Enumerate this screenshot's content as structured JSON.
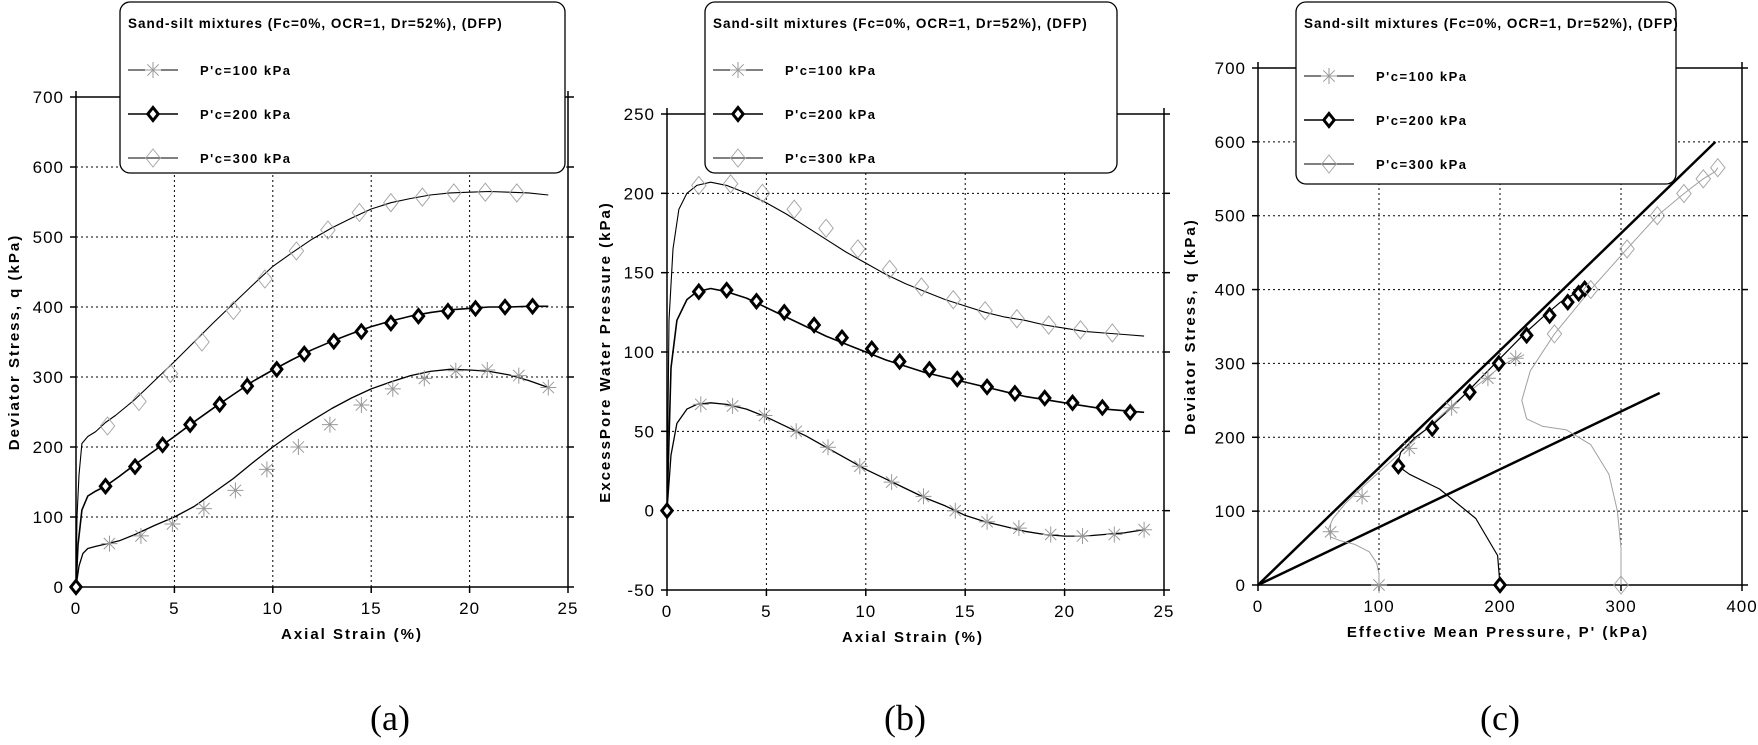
{
  "legend_title": "Sand-silt mixtures (Fc=0%, OCR=1, Dr=52%), (DFP)",
  "legend_entries": [
    "P'c=100 kPa",
    "P'c=200 kPa",
    "P'c=300 kPa"
  ],
  "chart_data": [
    {
      "id": "a",
      "type": "line",
      "caption": "(a)",
      "xlabel": "Axial Strain (%)",
      "ylabel": "Deviator Stress, q (kPa)",
      "xlim": [
        0,
        25
      ],
      "ylim": [
        0,
        700
      ],
      "xticks": [
        0,
        5,
        10,
        15,
        20,
        25
      ],
      "yticks": [
        0,
        100,
        200,
        300,
        400,
        500,
        600,
        700
      ],
      "grid": true,
      "legend_position": "top-center",
      "series": [
        {
          "name": "P'c=100 kPa",
          "marker": "star",
          "x": [
            0,
            0.15,
            0.35,
            0.6,
            1.0,
            1.6,
            2.2,
            3.0,
            4.0,
            5.0,
            6.0,
            7.0,
            8.0,
            9.0,
            10.0,
            11.0,
            12.0,
            13.0,
            14.0,
            15.0,
            16.0,
            17.0,
            18.0,
            19.0,
            20.0,
            21.0,
            22.0,
            23.0,
            24.0
          ],
          "y": [
            0,
            30,
            48,
            55,
            58,
            62,
            66,
            75,
            88,
            100,
            115,
            135,
            155,
            178,
            200,
            220,
            238,
            255,
            270,
            283,
            293,
            302,
            308,
            311,
            310,
            308,
            303,
            295,
            285
          ]
        },
        {
          "name": "P'c=200 kPa",
          "marker": "diamond-bold",
          "x": [
            0,
            0.1,
            0.3,
            0.6,
            1.0,
            1.5,
            2.2,
            3.0,
            4.0,
            5.0,
            6.0,
            7.0,
            8.0,
            9.0,
            10.0,
            11.0,
            12.0,
            13.0,
            14.0,
            15.0,
            16.0,
            17.0,
            18.0,
            19.0,
            20.0,
            21.0,
            22.0,
            23.0,
            24.0
          ],
          "y": [
            0,
            60,
            110,
            130,
            137,
            144,
            158,
            175,
            195,
            215,
            236,
            256,
            275,
            294,
            310,
            325,
            339,
            351,
            362,
            372,
            380,
            387,
            392,
            396,
            398,
            400,
            400,
            401,
            401
          ]
        },
        {
          "name": "P'c=300 kPa",
          "marker": "diamond-open",
          "x": [
            0,
            0.05,
            0.15,
            0.3,
            0.6,
            1.0,
            1.5,
            2.0,
            3.0,
            4.0,
            5.0,
            6.0,
            7.0,
            8.0,
            9.0,
            10.0,
            11.0,
            12.0,
            13.0,
            14.0,
            15.0,
            16.0,
            17.0,
            18.0,
            19.0,
            20.0,
            21.0,
            22.0,
            23.0,
            24.0
          ],
          "y": [
            0,
            100,
            160,
            205,
            215,
            222,
            235,
            245,
            268,
            295,
            322,
            350,
            378,
            405,
            432,
            458,
            478,
            497,
            513,
            527,
            540,
            549,
            555,
            560,
            563,
            564,
            565,
            564,
            563,
            560
          ]
        }
      ],
      "marker_points": [
        {
          "series": 0,
          "x": [
            1.7,
            3.3,
            4.9,
            6.5,
            8.1,
            9.7,
            11.3,
            12.9,
            14.5,
            16.1,
            17.7,
            19.3,
            20.9,
            22.5,
            24.0
          ],
          "y": [
            62,
            73,
            90,
            112,
            138,
            168,
            200,
            232,
            260,
            283,
            298,
            309,
            310,
            302,
            285
          ]
        },
        {
          "series": 1,
          "x": [
            0,
            1.5,
            3.0,
            4.4,
            5.8,
            7.3,
            8.7,
            10.2,
            11.6,
            13.1,
            14.5,
            16.0,
            17.4,
            18.9,
            20.3,
            21.8,
            23.2
          ],
          "y": [
            0,
            144,
            172,
            203,
            232,
            261,
            287,
            311,
            333,
            351,
            365,
            377,
            387,
            394,
            398,
            400,
            401
          ]
        },
        {
          "series": 2,
          "x": [
            1.6,
            3.2,
            4.8,
            6.4,
            8.0,
            9.6,
            11.2,
            12.8,
            14.4,
            16.0,
            17.6,
            19.2,
            20.8,
            22.4
          ],
          "y": [
            230,
            265,
            305,
            350,
            395,
            440,
            480,
            510,
            535,
            549,
            557,
            563,
            564,
            563
          ]
        }
      ]
    },
    {
      "id": "b",
      "type": "line",
      "caption": "(b)",
      "xlabel": "Axial Strain (%)",
      "ylabel": "ExcessPore Water Pressure (kPa)",
      "xlim": [
        0,
        25
      ],
      "ylim": [
        -50,
        250
      ],
      "xticks": [
        0,
        5,
        10,
        15,
        20,
        25
      ],
      "yticks": [
        -50,
        0,
        50,
        100,
        150,
        200,
        250
      ],
      "grid": true,
      "legend_position": "top-center",
      "series": [
        {
          "name": "P'c=100 kPa",
          "marker": "star",
          "x": [
            0,
            0.2,
            0.5,
            1.0,
            1.5,
            2.2,
            3.0,
            4.0,
            5.0,
            6.0,
            7.0,
            8.0,
            9.0,
            10.0,
            11.0,
            12.0,
            13.0,
            14.0,
            15.0,
            16.0,
            17.0,
            18.0,
            19.0,
            20.0,
            21.0,
            22.0,
            23.0,
            24.0
          ],
          "y": [
            0,
            35,
            55,
            64,
            67,
            68,
            67,
            64,
            59,
            53,
            47,
            40,
            33,
            26,
            20,
            14,
            8,
            3,
            -3,
            -7,
            -10,
            -13,
            -15,
            -16,
            -16,
            -15,
            -14,
            -12
          ]
        },
        {
          "name": "P'c=200 kPa",
          "marker": "diamond-bold",
          "x": [
            0,
            0.2,
            0.5,
            1.0,
            1.5,
            2.2,
            3.0,
            4.0,
            5.0,
            6.0,
            7.0,
            8.0,
            9.0,
            10.0,
            11.0,
            12.0,
            13.0,
            14.0,
            15.0,
            16.0,
            17.0,
            18.0,
            19.0,
            20.0,
            21.0,
            22.0,
            23.0,
            24.0
          ],
          "y": [
            0,
            90,
            120,
            133,
            138,
            140,
            138,
            134,
            128,
            122,
            116,
            110,
            105,
            100,
            95,
            91,
            87,
            84,
            81,
            78,
            75,
            72,
            70,
            68,
            66,
            64,
            63,
            62
          ]
        },
        {
          "name": "P'c=300 kPa",
          "marker": "diamond-open",
          "x": [
            0,
            0.1,
            0.3,
            0.6,
            1.0,
            1.5,
            2.2,
            3.0,
            4.0,
            5.0,
            6.0,
            7.0,
            8.0,
            9.0,
            10.0,
            11.0,
            12.0,
            13.0,
            14.0,
            15.0,
            16.0,
            17.0,
            18.0,
            19.0,
            20.0,
            21.0,
            22.0,
            23.0,
            24.0
          ],
          "y": [
            0,
            120,
            165,
            190,
            200,
            205,
            207,
            205,
            200,
            194,
            187,
            179,
            171,
            163,
            156,
            149,
            143,
            138,
            133,
            129,
            125,
            122,
            120,
            117,
            115,
            113,
            112,
            111,
            110
          ]
        }
      ],
      "marker_points": [
        {
          "series": 0,
          "x": [
            1.7,
            3.3,
            4.9,
            6.5,
            8.1,
            9.7,
            11.3,
            12.9,
            14.5,
            16.1,
            17.7,
            19.3,
            20.9,
            22.5,
            24.0
          ],
          "y": [
            67,
            66,
            60,
            50,
            40,
            28,
            18,
            9,
            0,
            -7,
            -11,
            -15,
            -16,
            -15,
            -12
          ]
        },
        {
          "series": 1,
          "x": [
            0,
            1.6,
            3.0,
            4.5,
            5.9,
            7.4,
            8.8,
            10.3,
            11.7,
            13.2,
            14.6,
            16.1,
            17.5,
            19.0,
            20.4,
            21.9,
            23.3
          ],
          "y": [
            0,
            138,
            139,
            132,
            125,
            117,
            109,
            102,
            94,
            89,
            83,
            78,
            74,
            71,
            68,
            65,
            62
          ]
        },
        {
          "series": 2,
          "x": [
            1.6,
            3.2,
            4.8,
            6.4,
            8.0,
            9.6,
            11.2,
            12.8,
            14.4,
            16.0,
            17.6,
            19.2,
            20.8,
            22.4
          ],
          "y": [
            205,
            206,
            200,
            190,
            178,
            165,
            152,
            141,
            133,
            126,
            121,
            117,
            114,
            112
          ]
        }
      ]
    },
    {
      "id": "c",
      "type": "line",
      "caption": "(c)",
      "xlabel": "Effective Mean Pressure, P' (kPa)",
      "ylabel": "Deviator Stress, q (kPa)",
      "xlim": [
        0,
        400
      ],
      "ylim": [
        0,
        700
      ],
      "xticks": [
        0,
        100,
        200,
        300,
        400
      ],
      "yticks": [
        0,
        100,
        200,
        300,
        400,
        500,
        600,
        700
      ],
      "grid": true,
      "legend_position": "top-center",
      "series": [
        {
          "name": "P'c=100 kPa",
          "marker": "star",
          "x": [
            100,
            100,
            98,
            92,
            80,
            68,
            60,
            58,
            62,
            72,
            88,
            105,
            125,
            145,
            165,
            185,
            200,
            210,
            218,
            220
          ],
          "y": [
            0,
            15,
            30,
            45,
            55,
            60,
            65,
            75,
            90,
            110,
            135,
            160,
            190,
            220,
            250,
            275,
            295,
            305,
            310,
            312
          ]
        },
        {
          "name": "P'c=200 kPa",
          "marker": "diamond-bold",
          "x": [
            200,
            198,
            180,
            150,
            125,
            115,
            118,
            130,
            145,
            160,
            175,
            190,
            205,
            220,
            235,
            250,
            262,
            270
          ],
          "y": [
            0,
            40,
            90,
            130,
            150,
            162,
            180,
            200,
            218,
            240,
            265,
            290,
            315,
            340,
            362,
            383,
            395,
            401
          ]
        },
        {
          "name": "P'c=300 kPa",
          "marker": "diamond-open",
          "x": [
            300,
            300,
            297,
            290,
            275,
            255,
            235,
            222,
            218,
            225,
            245,
            275,
            305,
            330,
            352,
            368,
            378,
            380
          ],
          "y": [
            0,
            50,
            100,
            150,
            190,
            210,
            215,
            225,
            250,
            290,
            340,
            400,
            455,
            500,
            530,
            550,
            560,
            565
          ]
        }
      ],
      "marker_points": [
        {
          "series": 0,
          "x": [
            100,
            60,
            86,
            125,
            160,
            190,
            213
          ],
          "y": [
            0,
            72,
            120,
            185,
            240,
            280,
            307
          ]
        },
        {
          "series": 1,
          "x": [
            200,
            116,
            144,
            175,
            199,
            222,
            241,
            256,
            265,
            270
          ],
          "y": [
            0,
            161,
            212,
            261,
            300,
            338,
            365,
            383,
            395,
            401
          ]
        },
        {
          "series": 2,
          "x": [
            300,
            245,
            275,
            305,
            330,
            352,
            368,
            380
          ],
          "y": [
            0,
            340,
            400,
            455,
            500,
            530,
            550,
            565
          ]
        }
      ],
      "reference_lines": [
        {
          "x": [
            0,
            378
          ],
          "y": [
            0,
            600
          ]
        },
        {
          "x": [
            0,
            332
          ],
          "y": [
            0,
            260
          ]
        }
      ]
    }
  ]
}
